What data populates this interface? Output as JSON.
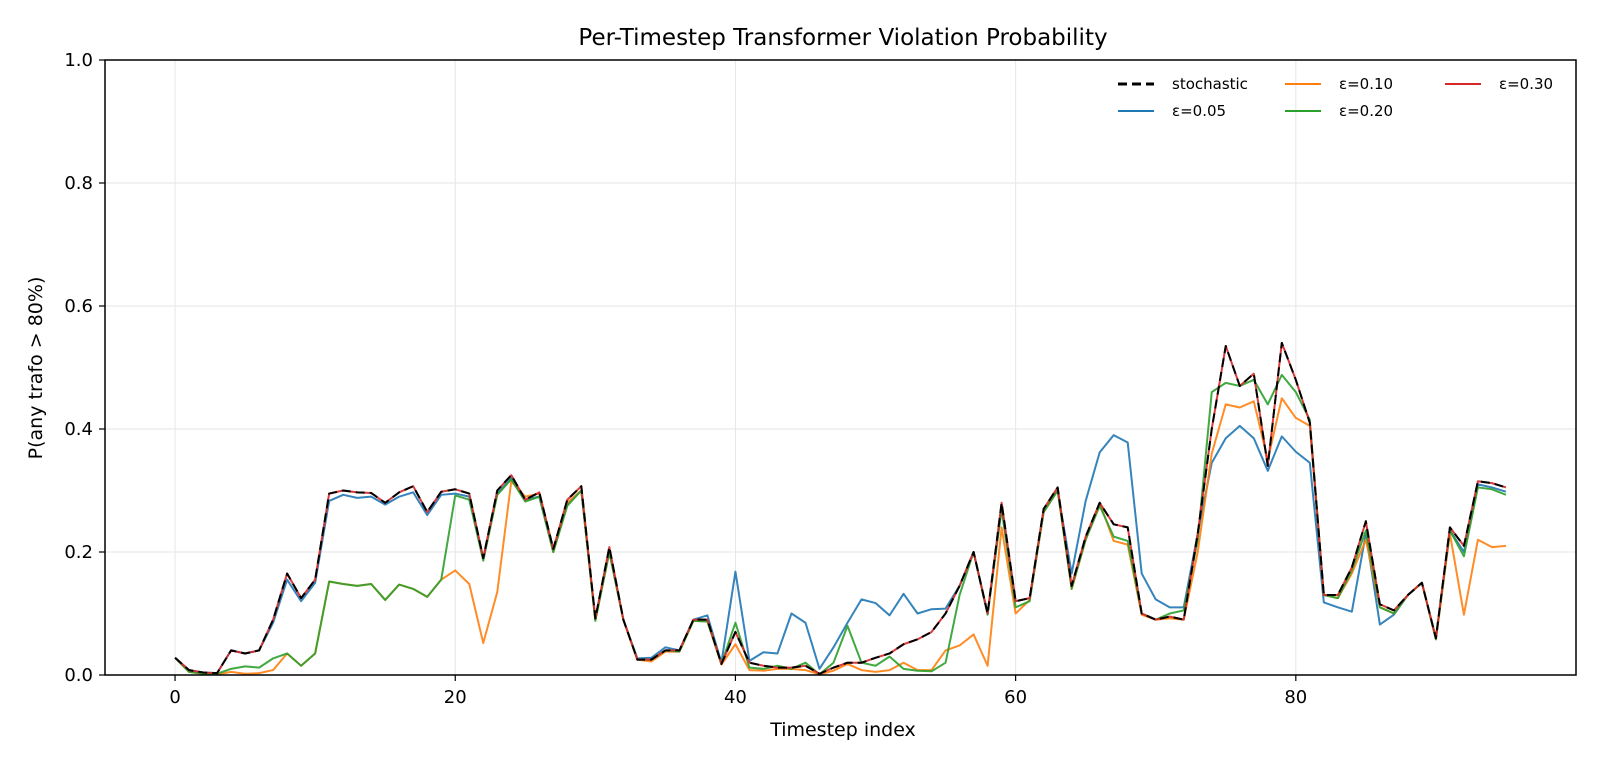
{
  "chart_data": {
    "type": "line",
    "title": "Per-Timestep Transformer Violation Probability",
    "xlabel": "Timestep index",
    "ylabel": "P(any trafo > 80%)",
    "xlim": [
      -5,
      100
    ],
    "ylim": [
      0,
      1.0
    ],
    "xticks": [
      0,
      20,
      40,
      60,
      80
    ],
    "yticks": [
      0.0,
      0.2,
      0.4,
      0.6,
      0.8,
      1.0
    ],
    "ytick_labels": [
      "0.0",
      "0.2",
      "0.4",
      "0.6",
      "0.8",
      "1.0"
    ],
    "grid": true,
    "legend_position": "top-right",
    "x": [
      0,
      1,
      2,
      3,
      4,
      5,
      6,
      7,
      8,
      9,
      10,
      11,
      12,
      13,
      14,
      15,
      16,
      17,
      18,
      19,
      20,
      21,
      22,
      23,
      24,
      25,
      26,
      27,
      28,
      29,
      30,
      31,
      32,
      33,
      34,
      35,
      36,
      37,
      38,
      39,
      40,
      41,
      42,
      43,
      44,
      45,
      46,
      47,
      48,
      49,
      50,
      51,
      52,
      53,
      54,
      55,
      56,
      57,
      58,
      59,
      60,
      61,
      62,
      63,
      64,
      65,
      66,
      67,
      68,
      69,
      70,
      71,
      72,
      73,
      74,
      75,
      76,
      77,
      78,
      79,
      80,
      81,
      82,
      83,
      84,
      85,
      86,
      87,
      88,
      89,
      90,
      91,
      92,
      93,
      94,
      95
    ],
    "series": [
      {
        "name": "stochastic",
        "color": "#000000",
        "dashed": true,
        "values": [
          0.028,
          0.008,
          0.004,
          0.003,
          0.04,
          0.035,
          0.04,
          0.09,
          0.165,
          0.125,
          0.155,
          0.295,
          0.3,
          0.297,
          0.296,
          0.28,
          0.297,
          0.307,
          0.265,
          0.298,
          0.302,
          0.295,
          0.19,
          0.3,
          0.325,
          0.285,
          0.297,
          0.205,
          0.285,
          0.307,
          0.092,
          0.208,
          0.09,
          0.025,
          0.025,
          0.04,
          0.04,
          0.09,
          0.09,
          0.018,
          0.07,
          0.02,
          0.015,
          0.012,
          0.012,
          0.015,
          0.002,
          0.012,
          0.02,
          0.02,
          0.028,
          0.035,
          0.05,
          0.058,
          0.07,
          0.1,
          0.145,
          0.2,
          0.1,
          0.28,
          0.12,
          0.125,
          0.27,
          0.305,
          0.145,
          0.225,
          0.28,
          0.245,
          0.24,
          0.1,
          0.09,
          0.095,
          0.09,
          0.23,
          0.4,
          0.535,
          0.47,
          0.49,
          0.34,
          0.54,
          0.48,
          0.41,
          0.13,
          0.13,
          0.175,
          0.25,
          0.115,
          0.105,
          0.13,
          0.15,
          0.06,
          0.24,
          0.21,
          0.315,
          0.312,
          0.305
        ]
      },
      {
        "name": "ε=0.05",
        "color": "#1f77b4",
        "dashed": false,
        "values": [
          0.028,
          0.008,
          0.004,
          0.003,
          0.04,
          0.035,
          0.04,
          0.085,
          0.155,
          0.12,
          0.15,
          0.283,
          0.293,
          0.288,
          0.29,
          0.277,
          0.29,
          0.297,
          0.26,
          0.293,
          0.295,
          0.29,
          0.19,
          0.295,
          0.32,
          0.285,
          0.29,
          0.2,
          0.278,
          0.3,
          0.09,
          0.2,
          0.09,
          0.027,
          0.028,
          0.045,
          0.04,
          0.09,
          0.097,
          0.02,
          0.168,
          0.023,
          0.037,
          0.035,
          0.1,
          0.085,
          0.01,
          0.045,
          0.085,
          0.123,
          0.117,
          0.097,
          0.132,
          0.1,
          0.107,
          0.108,
          0.145,
          0.2,
          0.1,
          0.27,
          0.12,
          0.125,
          0.265,
          0.3,
          0.165,
          0.283,
          0.362,
          0.39,
          0.378,
          0.165,
          0.123,
          0.11,
          0.11,
          0.23,
          0.345,
          0.385,
          0.405,
          0.385,
          0.332,
          0.388,
          0.363,
          0.345,
          0.118,
          0.11,
          0.103,
          0.23,
          0.082,
          0.098,
          0.13,
          0.15,
          0.06,
          0.235,
          0.2,
          0.31,
          0.305,
          0.298
        ]
      },
      {
        "name": "ε=0.10",
        "color": "#ff7f0e",
        "dashed": false,
        "values": [
          0.028,
          0.005,
          0.002,
          0.001,
          0.005,
          0.002,
          0.003,
          0.008,
          0.035,
          0.015,
          0.035,
          0.152,
          0.148,
          0.145,
          0.148,
          0.122,
          0.147,
          0.14,
          0.127,
          0.155,
          0.17,
          0.148,
          0.052,
          0.135,
          0.315,
          0.29,
          0.295,
          0.2,
          0.28,
          0.3,
          0.09,
          0.2,
          0.09,
          0.025,
          0.022,
          0.038,
          0.038,
          0.088,
          0.087,
          0.017,
          0.05,
          0.008,
          0.007,
          0.01,
          0.01,
          0.008,
          0.001,
          0.007,
          0.018,
          0.008,
          0.005,
          0.008,
          0.02,
          0.008,
          0.008,
          0.04,
          0.048,
          0.066,
          0.015,
          0.24,
          0.1,
          0.122,
          0.265,
          0.3,
          0.14,
          0.22,
          0.28,
          0.218,
          0.212,
          0.098,
          0.09,
          0.092,
          0.09,
          0.2,
          0.36,
          0.44,
          0.435,
          0.445,
          0.35,
          0.45,
          0.418,
          0.405,
          0.13,
          0.125,
          0.165,
          0.22,
          0.11,
          0.1,
          0.13,
          0.15,
          0.058,
          0.23,
          0.098,
          0.22,
          0.208,
          0.21
        ]
      },
      {
        "name": "ε=0.20",
        "color": "#2ca02c",
        "dashed": false,
        "values": [
          0.028,
          0.005,
          0.002,
          0.002,
          0.01,
          0.014,
          0.012,
          0.027,
          0.035,
          0.015,
          0.035,
          0.152,
          0.148,
          0.145,
          0.148,
          0.122,
          0.147,
          0.14,
          0.127,
          0.155,
          0.292,
          0.285,
          0.186,
          0.293,
          0.318,
          0.282,
          0.29,
          0.2,
          0.275,
          0.3,
          0.088,
          0.2,
          0.09,
          0.025,
          0.025,
          0.04,
          0.038,
          0.088,
          0.087,
          0.018,
          0.085,
          0.012,
          0.01,
          0.015,
          0.01,
          0.02,
          0.001,
          0.02,
          0.08,
          0.02,
          0.015,
          0.03,
          0.01,
          0.007,
          0.006,
          0.02,
          0.13,
          0.2,
          0.098,
          0.27,
          0.11,
          0.12,
          0.265,
          0.3,
          0.14,
          0.22,
          0.275,
          0.225,
          0.218,
          0.1,
          0.09,
          0.1,
          0.105,
          0.22,
          0.46,
          0.475,
          0.47,
          0.48,
          0.44,
          0.488,
          0.46,
          0.415,
          0.13,
          0.125,
          0.17,
          0.235,
          0.11,
          0.1,
          0.13,
          0.15,
          0.058,
          0.235,
          0.193,
          0.305,
          0.302,
          0.293
        ]
      },
      {
        "name": "ε=0.30",
        "color": "#d62728",
        "dashed": false,
        "values": [
          0.028,
          0.008,
          0.004,
          0.003,
          0.04,
          0.035,
          0.04,
          0.09,
          0.165,
          0.125,
          0.155,
          0.295,
          0.3,
          0.297,
          0.296,
          0.28,
          0.297,
          0.307,
          0.265,
          0.298,
          0.302,
          0.295,
          0.19,
          0.3,
          0.325,
          0.285,
          0.297,
          0.205,
          0.285,
          0.307,
          0.092,
          0.208,
          0.09,
          0.025,
          0.025,
          0.04,
          0.04,
          0.09,
          0.09,
          0.018,
          0.07,
          0.02,
          0.015,
          0.012,
          0.012,
          0.015,
          0.002,
          0.012,
          0.02,
          0.02,
          0.028,
          0.035,
          0.05,
          0.058,
          0.07,
          0.1,
          0.145,
          0.2,
          0.1,
          0.28,
          0.12,
          0.125,
          0.27,
          0.305,
          0.145,
          0.225,
          0.28,
          0.245,
          0.24,
          0.1,
          0.09,
          0.095,
          0.09,
          0.23,
          0.4,
          0.535,
          0.47,
          0.49,
          0.34,
          0.54,
          0.48,
          0.41,
          0.13,
          0.13,
          0.175,
          0.25,
          0.115,
          0.105,
          0.13,
          0.15,
          0.06,
          0.24,
          0.21,
          0.315,
          0.312,
          0.305
        ]
      }
    ]
  }
}
